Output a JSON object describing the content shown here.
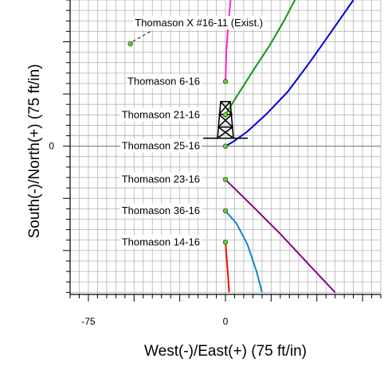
{
  "chart_data": {
    "type": "scatter",
    "xlabel": "West(-)/East(+) (75 ft/in)",
    "ylabel": "South(-)/North(+) (75 ft/in)",
    "xlim": [
      -85,
      85
    ],
    "ylim": [
      -71,
      70
    ],
    "x_ticks": [
      {
        "value": -75,
        "label": "-75"
      },
      {
        "value": 0,
        "label": "0"
      }
    ],
    "y_ticks": [
      {
        "value": 0,
        "label": "0"
      }
    ],
    "grid": true,
    "wells": [
      {
        "name": "Thomason X #16-11 (Exist.)",
        "x": -52,
        "y": 49
      },
      {
        "name": "Thomason 6-16",
        "x": 0,
        "y": 31
      },
      {
        "name": "Thomason 21-16",
        "x": 0,
        "y": 15
      },
      {
        "name": "Thomason 25-16",
        "x": 0,
        "y": 0
      },
      {
        "name": "Thomason 23-16",
        "x": 0,
        "y": -16
      },
      {
        "name": "Thomason 36-16",
        "x": 0,
        "y": -31
      },
      {
        "name": "Thomason 14-16",
        "x": 0,
        "y": -46
      }
    ],
    "series": [
      {
        "color": "#ff22cc",
        "x": [
          0,
          0.5,
          1.5,
          3
        ],
        "y": [
          31,
          45,
          58,
          72
        ]
      },
      {
        "color": "#119911",
        "x": [
          0,
          2,
          7,
          15,
          24,
          32,
          38
        ],
        "y": [
          15,
          18,
          25,
          36,
          48,
          60,
          70
        ]
      },
      {
        "color": "#0000dd",
        "x": [
          0,
          4,
          12,
          22,
          34,
          46,
          58,
          70
        ],
        "y": [
          0,
          2,
          7,
          15,
          26,
          40,
          55,
          70
        ]
      },
      {
        "color": "#880088",
        "x": [
          0,
          14,
          30,
          46,
          60
        ],
        "y": [
          -16,
          -28,
          -42,
          -57,
          -70
        ]
      },
      {
        "color": "#1188cc",
        "x": [
          0,
          6,
          12,
          17,
          20
        ],
        "y": [
          -31,
          -37,
          -47,
          -60,
          -70
        ]
      },
      {
        "color": "#ee1100",
        "x": [
          0,
          0.8,
          1.5,
          2
        ],
        "y": [
          -46,
          -55,
          -63,
          -70
        ]
      }
    ],
    "derrick": {
      "x": 0,
      "y": 0
    }
  },
  "colors": {
    "grid": "#b4b4b4",
    "point_fill": "#66cc44",
    "point_stroke": "#226600",
    "leader": "#000000"
  }
}
